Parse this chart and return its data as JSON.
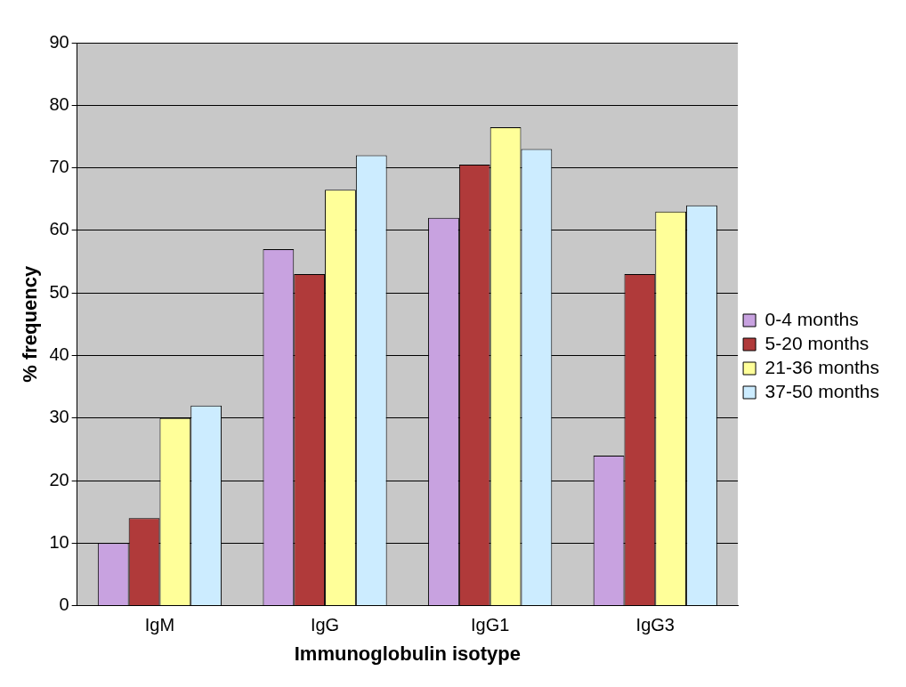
{
  "chart_data": {
    "type": "bar",
    "xlabel": "Immunoglobulin isotype",
    "ylabel": "% frequency",
    "categories": [
      "IgM",
      "IgG",
      "IgG1",
      "IgG3"
    ],
    "series": [
      {
        "name": "0-4 months",
        "color": "#c8a2e0",
        "values": [
          10,
          57,
          62,
          24
        ]
      },
      {
        "name": "5-20 months",
        "color": "#b03a3a",
        "values": [
          14,
          53,
          70.5,
          53
        ]
      },
      {
        "name": "21-36 months",
        "color": "#ffff99",
        "values": [
          30,
          66.5,
          76.5,
          63
        ]
      },
      {
        "name": "37-50 months",
        "color": "#ccecff",
        "values": [
          32,
          72,
          73,
          64
        ]
      }
    ],
    "ylim": [
      0,
      90
    ],
    "yticks": [
      0,
      10,
      20,
      30,
      40,
      50,
      60,
      70,
      80,
      90
    ],
    "grid": "y",
    "legend": "right"
  }
}
